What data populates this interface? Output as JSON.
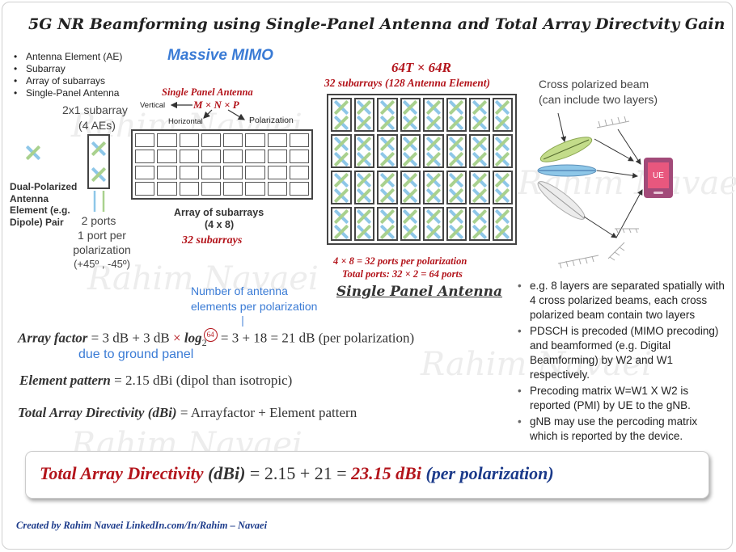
{
  "title": "5G NR Beamforming using Single-Panel Antenna and Total Array Directvity Gain",
  "legend_items": [
    "Antenna Element (AE)",
    "Subarray",
    "Array of subarrays",
    "Single-Panel Antenna"
  ],
  "massive_mimo": "Massive MIMO",
  "single_panel_heading": "Single Panel Antenna",
  "vertical_label": "Vertical",
  "mnp_label": "M × N × P",
  "horizontal_label": "Horizontal",
  "polarization_label": "Polarization",
  "subarray_2x1_line1": "2x1 subarray",
  "subarray_2x1_line2": "(4 AEs)",
  "dual_pol_label": [
    "Dual-Polarized",
    "Antenna",
    "Element (e.g.",
    "Dipole) Pair"
  ],
  "ports_text": [
    "2 ports",
    "1 port per",
    "polarization",
    "(+45º , -45º)"
  ],
  "array_label_line1": "Array of subarrays",
  "array_label_line2": "(4 x 8)",
  "subarrays_32": "32 subarrays",
  "t64r64": "64T × 64R",
  "subarrays_128": "32 subarrays (128 Antenna Element)",
  "cross_pol_line1": "Cross polarized beam",
  "cross_pol_line2": "(can include two layers)",
  "ue_label": "UE",
  "ports_per_pol": "4 × 8 = 32 ports per polarization",
  "total_ports": "Total ports: 32 × 2 = 64 ports",
  "single_panel_big": "Single Panel Antenna",
  "num_elements_line1": "Number of antenna",
  "num_elements_line2": "elements per polarization",
  "array_factor": {
    "label": "Array factor",
    "expr_a": " = 3 dB + 3 dB ",
    "times": "×",
    "log": " log",
    "sub": "2",
    "circled": "64",
    "expr_b": " = 3 + 18 = 21 dB (per polarization)"
  },
  "ground_panel": "due to ground panel",
  "element_pattern": {
    "label": "Element pattern",
    "expr": " = 2.15 dBi (dipol than isotropic)"
  },
  "total_directivity": {
    "label": "Total Array Directivity (dBi)",
    "expr": " = Arrayfactor  + Element pattern"
  },
  "result": {
    "label": "Total Array Directivity",
    "paren": " (dBi)",
    "eq": " = 2.15 + 21 = ",
    "value": "23.15 dBi",
    "per": " (per polarization)"
  },
  "right_notes": [
    "e.g. 8 layers are separated spatially with 4 cross polarized beams, each cross polarized beam contain two layers",
    "PDSCH is precoded (MIMO precoding) and beamformed (e.g. Digital Beamforming) by W2 and W1 respectively.",
    "Precoding matrix W=W1 X W2 is reported (PMI) by UE to the gNB.",
    "gNB may use the percoding matrix which is reported by the device."
  ],
  "footer": "Created by Rahim Navaei   LinkedIn.com/In/Rahim – Navaei",
  "watermark": "Rahim Navaei",
  "colors": {
    "red": "#b3141b",
    "blue": "#1f5fbf",
    "navy": "#1b3a8a",
    "ae_blue": "#8ec7e8",
    "ae_green": "#a9d18e",
    "ue": "#a24a79"
  },
  "grid_small": {
    "rows": 4,
    "cols": 8
  },
  "grid_big": {
    "rows": 4,
    "cols": 8
  }
}
